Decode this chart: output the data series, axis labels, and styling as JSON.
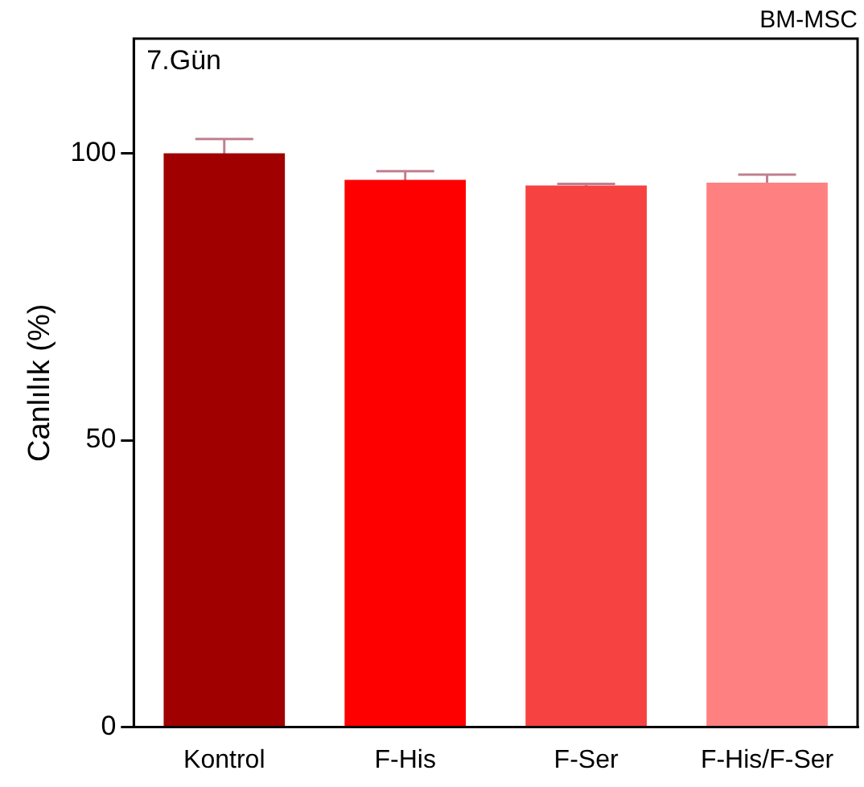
{
  "chart_data": {
    "type": "bar",
    "title": "BM-MSC",
    "ylabel": "Canlılık (%)",
    "annotations": [
      "7.Gün"
    ],
    "categories": [
      "Kontrol",
      "F-His",
      "F-Ser",
      "F-His/F-Ser"
    ],
    "values": [
      100,
      95.4,
      94.4,
      94.9
    ],
    "colors": [
      "#a00000",
      "#ff0000",
      "#f74242",
      "#ff8080"
    ],
    "errors": [
      2.5,
      1.5,
      0.3,
      1.4
    ],
    "ylim": [
      0,
      120
    ],
    "yticks": [
      0,
      50,
      100
    ],
    "grid": false,
    "legend": false
  }
}
